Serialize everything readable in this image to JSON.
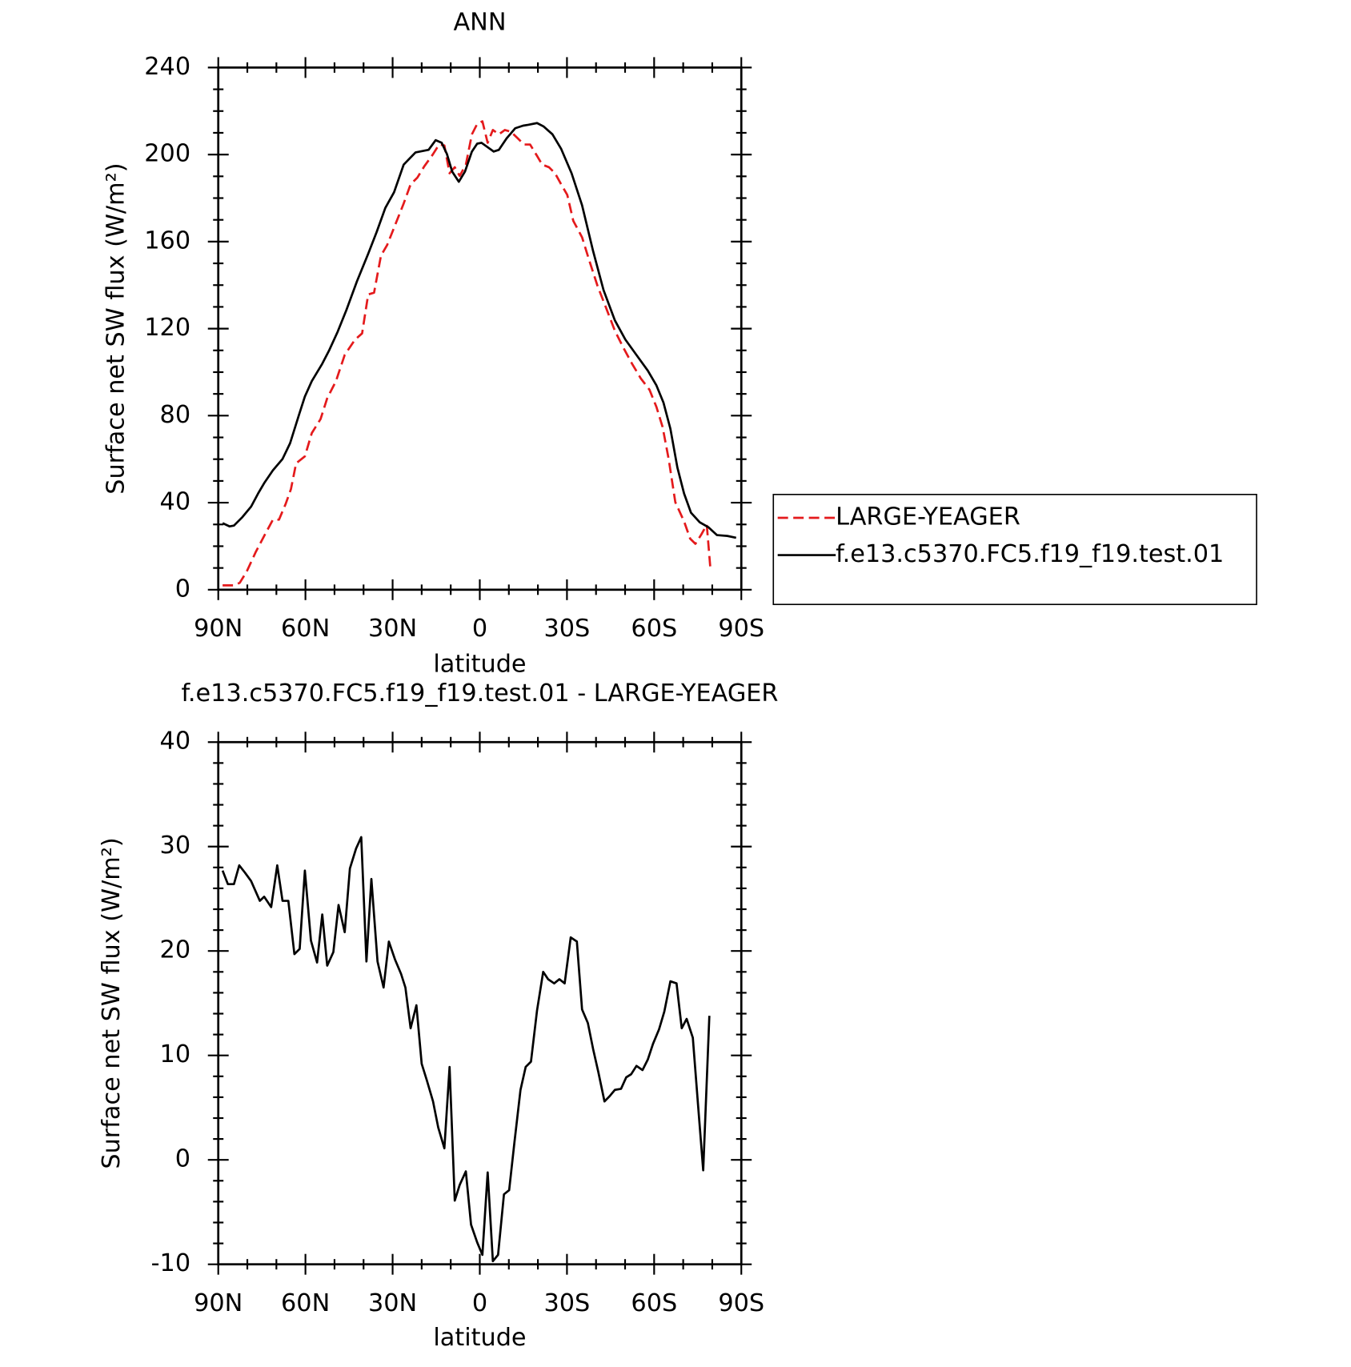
{
  "chart_data": [
    {
      "type": "line",
      "title": "ANN",
      "xlabel": "latitude",
      "ylabel": "Surface net SW flux (W/m²)",
      "xlim": [
        90,
        -90
      ],
      "xticks": [
        {
          "value": 90,
          "label": "90N"
        },
        {
          "value": 60,
          "label": "60N"
        },
        {
          "value": 30,
          "label": "30N"
        },
        0,
        {
          "value": -30,
          "label": "30S"
        },
        {
          "value": -60,
          "label": "60S"
        },
        {
          "value": -90,
          "label": "90S"
        }
      ],
      "ylim": [
        0,
        240
      ],
      "yticks": [
        0,
        40,
        80,
        120,
        160,
        200,
        240
      ],
      "legend": "right",
      "series": [
        {
          "name": "LARGE-YEAGER",
          "color": "#e41a1c",
          "linestyle": "dashed",
          "x": [
            88.5,
            84.6,
            82.6,
            80.2,
            77.2,
            74.2,
            71.2,
            69.1,
            66.8,
            65.0,
            63.2,
            60.2,
            57.8,
            54.8,
            52.5,
            49.5,
            46.5,
            42.9,
            40.5,
            38.4,
            36.4,
            34.0,
            31.9,
            28.9,
            26.2,
            23.8,
            21.5,
            19.1,
            16.1,
            14.0,
            12.2,
            10.4,
            8.6,
            6.9,
            4.8,
            2.7,
            0.9,
            -0.9,
            -2.7,
            -4.5,
            -6.6,
            -8.6,
            -10.7,
            -13.1,
            -15.2,
            -17.3,
            -19.7,
            -21.5,
            -23.8,
            -25.9,
            -28.0,
            -30.1,
            -32.2,
            -35.2,
            -37.6,
            -40.5,
            -43.5,
            -46.5,
            -49.5,
            -52.4,
            -55.4,
            -58.4,
            -60.8,
            -62.9,
            -65.0,
            -67.3,
            -70.3,
            -72.4,
            -74.2,
            -76.3,
            -78.1,
            -79.3
          ],
          "values": [
            2.0,
            2.0,
            3.2,
            8.4,
            17.1,
            24.7,
            32.2,
            32.2,
            39.4,
            46.2,
            58.1,
            61.3,
            72.0,
            78.4,
            88.0,
            95.9,
            107.9,
            115.0,
            117.8,
            135.7,
            136.5,
            153.6,
            158.4,
            168.4,
            177.5,
            186.3,
            189.4,
            194.6,
            200.2,
            204.6,
            204.2,
            191.4,
            194.2,
            190.2,
            195.4,
            209.3,
            214.1,
            215.3,
            205.4,
            211.3,
            209.3,
            211.3,
            210.5,
            207.4,
            204.6,
            204.6,
            199.4,
            195.4,
            194.2,
            191.4,
            186.3,
            181.5,
            169.5,
            162.0,
            151.6,
            139.7,
            129.4,
            119.0,
            111.0,
            103.9,
            97.1,
            91.9,
            84.0,
            74.8,
            60.1,
            40.2,
            31.4,
            23.5,
            21.1,
            25.5,
            29.9,
            10.7
          ]
        },
        {
          "name": "f.e13.c5370.FC5.f19_f19.test.01",
          "color": "#000000",
          "linestyle": "solid",
          "x": [
            88.5,
            86.1,
            84.6,
            81.7,
            78.7,
            76.3,
            74.2,
            71.2,
            67.9,
            65.3,
            62.3,
            60.2,
            57.8,
            54.2,
            51.9,
            48.9,
            45.9,
            42.3,
            38.4,
            35.5,
            32.5,
            29.5,
            26.2,
            22.1,
            17.6,
            15.2,
            13.1,
            11.3,
            9.5,
            7.2,
            5.1,
            2.7,
            0.9,
            -0.6,
            -2.7,
            -4.8,
            -6.6,
            -9.2,
            -12.2,
            -14.9,
            -16.7,
            -19.7,
            -22.0,
            -25.0,
            -28.0,
            -31.6,
            -35.2,
            -39.0,
            -42.6,
            -46.5,
            -50.1,
            -53.9,
            -57.8,
            -60.8,
            -63.2,
            -65.6,
            -68.0,
            -70.3,
            -72.7,
            -75.7,
            -78.7,
            -81.6,
            -85.2,
            -88.2
          ],
          "values": [
            30.6,
            29.1,
            29.5,
            33.4,
            38.2,
            44.2,
            49.0,
            54.9,
            60.1,
            67.3,
            80.0,
            88.8,
            95.9,
            103.9,
            109.8,
            118.6,
            128.6,
            141.7,
            154.4,
            164.4,
            175.5,
            182.7,
            195.4,
            201.0,
            202.2,
            206.6,
            205.4,
            200.2,
            192.2,
            187.5,
            192.2,
            201.4,
            205.0,
            205.4,
            203.4,
            201.4,
            202.2,
            207.4,
            212.1,
            213.3,
            213.7,
            214.5,
            212.9,
            209.3,
            202.6,
            191.4,
            176.7,
            155.6,
            137.7,
            123.8,
            115.0,
            107.9,
            100.7,
            93.9,
            86.0,
            74.0,
            56.1,
            44.2,
            35.4,
            31.0,
            28.7,
            25.1,
            24.7,
            23.9
          ]
        }
      ]
    },
    {
      "type": "line",
      "title": "f.e13.c5370.FC5.f19_f19.test.01 - LARGE-YEAGER",
      "xlabel": "latitude",
      "ylabel": "Surface net SW flux (W/m²)",
      "xlim": [
        90,
        -90
      ],
      "xticks": [
        {
          "value": 90,
          "label": "90N"
        },
        {
          "value": 60,
          "label": "60N"
        },
        {
          "value": 30,
          "label": "30N"
        },
        0,
        {
          "value": -30,
          "label": "30S"
        },
        {
          "value": -60,
          "label": "60S"
        },
        {
          "value": -90,
          "label": "90S"
        }
      ],
      "ylim": [
        -10,
        40
      ],
      "yticks": [
        -10,
        0,
        10,
        20,
        30,
        40
      ],
      "series": [
        {
          "color": "#000000",
          "linestyle": "solid",
          "x": [
            88.5,
            86.7,
            84.6,
            82.8,
            80.8,
            78.7,
            75.7,
            74.2,
            71.8,
            69.7,
            67.9,
            65.9,
            63.8,
            62.0,
            60.2,
            58.1,
            56.0,
            54.2,
            52.5,
            50.4,
            48.6,
            46.5,
            44.7,
            42.6,
            40.8,
            39.0,
            37.3,
            35.2,
            33.1,
            31.3,
            29.2,
            27.1,
            25.6,
            23.8,
            21.8,
            20.0,
            18.2,
            16.1,
            14.3,
            12.2,
            10.4,
            8.6,
            6.9,
            4.8,
            3.0,
            0.9,
            -0.9,
            -2.7,
            -4.5,
            -6.3,
            -8.3,
            -10.1,
            -11.9,
            -14.0,
            -15.8,
            -17.6,
            -19.7,
            -21.8,
            -23.5,
            -25.6,
            -27.4,
            -29.2,
            -31.3,
            -33.4,
            -35.2,
            -37.2,
            -39.0,
            -40.8,
            -42.9,
            -44.7,
            -46.5,
            -48.6,
            -50.4,
            -52.1,
            -53.9,
            -56.0,
            -57.8,
            -59.6,
            -61.7,
            -63.5,
            -65.6,
            -67.7,
            -69.5,
            -71.2,
            -73.3,
            -75.1,
            -76.9,
            -79.0
          ],
          "values": [
            27.7,
            26.4,
            26.4,
            28.2,
            27.5,
            26.7,
            24.8,
            25.2,
            24.2,
            28.2,
            24.8,
            24.8,
            19.7,
            20.2,
            27.7,
            21.0,
            18.9,
            23.5,
            18.6,
            19.9,
            24.4,
            21.8,
            27.9,
            29.8,
            30.9,
            19.0,
            26.9,
            19.0,
            16.5,
            20.9,
            19.2,
            17.8,
            16.5,
            12.6,
            14.8,
            9.2,
            7.6,
            5.6,
            3.1,
            1.1,
            8.9,
            -3.9,
            -2.4,
            -1.1,
            -6.2,
            -7.9,
            -9.1,
            -1.2,
            -9.7,
            -9.1,
            -3.3,
            -2.9,
            1.6,
            6.7,
            8.9,
            9.4,
            14.3,
            18.0,
            17.3,
            16.9,
            17.3,
            16.9,
            21.3,
            20.9,
            14.4,
            13.1,
            10.6,
            8.4,
            5.6,
            6.1,
            6.7,
            6.8,
            7.9,
            8.2,
            9.0,
            8.6,
            9.6,
            11.1,
            12.5,
            14.2,
            17.1,
            16.9,
            12.6,
            13.5,
            11.7,
            5.3,
            -1.0,
            13.8
          ]
        }
      ]
    }
  ]
}
